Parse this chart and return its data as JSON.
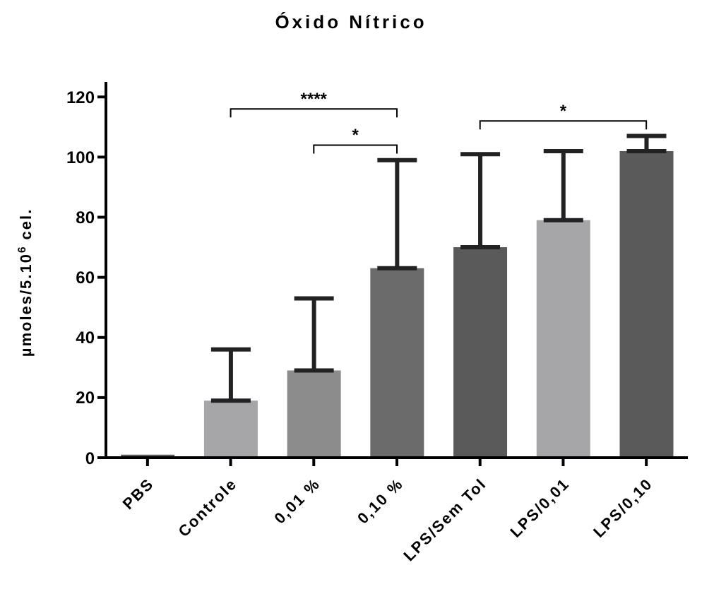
{
  "chart_data": {
    "type": "bar",
    "title": "Óxido Nítrico",
    "ylabel": "µmoles/5.10$^{6}$ cel.",
    "categories": [
      "PBS",
      "Controle",
      "0,01 %",
      "0,10 %",
      "LPS/Sem Tol",
      "LPS/0,01",
      "LPS/0,10"
    ],
    "values": [
      1,
      19,
      29,
      63,
      70,
      79,
      102
    ],
    "errors": [
      null,
      [
        19,
        36
      ],
      [
        29,
        53
      ],
      [
        63,
        99
      ],
      [
        70,
        101
      ],
      [
        79,
        102
      ],
      [
        102,
        107
      ]
    ],
    "colors": [
      "#5a5a5a",
      "#a6a6a8",
      "#8c8c8c",
      "#6b6b6b",
      "#5a5a5a",
      "#a6a6a8",
      "#5a5a5a"
    ],
    "ylim": [
      0,
      125
    ],
    "yticks": [
      0,
      20,
      40,
      60,
      80,
      100,
      120
    ],
    "grid": false,
    "annotations": [
      "****",
      "*",
      "*"
    ]
  }
}
